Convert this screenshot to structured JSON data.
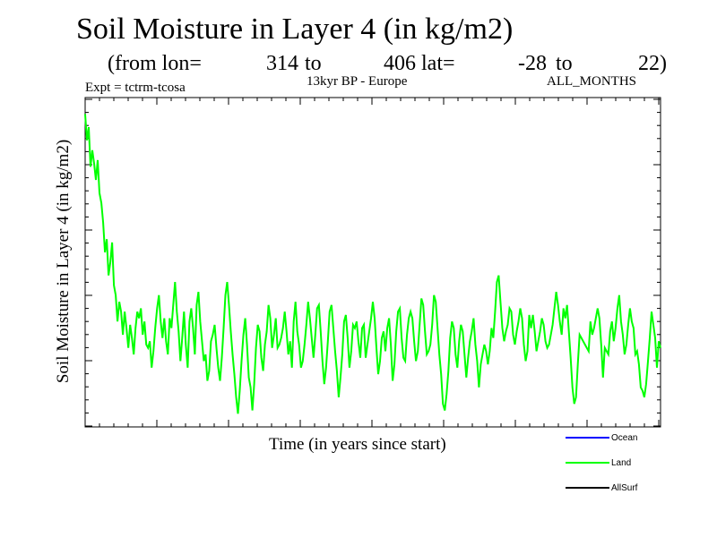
{
  "header": {
    "title": "Soil Moisture in Layer 4 (in kg/m2)",
    "from_lon_label": "(from lon=",
    "lon_start": "314",
    "to_label_1": "to",
    "lon_end": "406",
    "lat_label": "lat=",
    "lat_start": "-28",
    "to_label_2": "to",
    "lat_end": "22)",
    "expt": "Expt = tctrm-tcosa",
    "period": "13kyr BP - Europe",
    "months": "ALL_MONTHS"
  },
  "chart_data": {
    "type": "line",
    "title": "Soil Moisture in Layer 4 (in kg/m2)",
    "xlabel": "Time (in years since start)",
    "ylabel": "Soil Moisture in Layer 4 (in kg/m2)",
    "ylim": [
      0,
      100
    ],
    "x_tick_labels": [],
    "y_tick_labels": [],
    "legend_position": "bottom-right",
    "series": [
      {
        "name": "Ocean",
        "color": "#0000ff",
        "values": []
      },
      {
        "name": "Land",
        "color": "#00ff00",
        "values": [
          95,
          87,
          91,
          79,
          84,
          80,
          75,
          81,
          71,
          68,
          62,
          53,
          57,
          46,
          50,
          56,
          43,
          40,
          32,
          38,
          35,
          28,
          35,
          30,
          24,
          31,
          27,
          22,
          30,
          35,
          33,
          36,
          28,
          32,
          25,
          24,
          26,
          18,
          23,
          30,
          36,
          40,
          32,
          27,
          33,
          26,
          22,
          33,
          30,
          37,
          44,
          35,
          29,
          20,
          27,
          35,
          25,
          18,
          32,
          36,
          30,
          22,
          37,
          41,
          32,
          26,
          20,
          22,
          14,
          17,
          26,
          28,
          31,
          24,
          18,
          14,
          21,
          30,
          40,
          44,
          37,
          29,
          22,
          16,
          9,
          4,
          11,
          20,
          28,
          33,
          25,
          15,
          12,
          5,
          13,
          24,
          31,
          29,
          21,
          17,
          25,
          29,
          37,
          33,
          24,
          28,
          33,
          24,
          25,
          27,
          30,
          35,
          29,
          22,
          26,
          18,
          32,
          38,
          29,
          25,
          18,
          20,
          25,
          31,
          38,
          33,
          27,
          21,
          28,
          36,
          37,
          29,
          20,
          13,
          18,
          26,
          35,
          37,
          30,
          23,
          17,
          9,
          15,
          22,
          32,
          34,
          27,
          18,
          23,
          31,
          30,
          32,
          26,
          21,
          30,
          31,
          21,
          25,
          29,
          33,
          38,
          33,
          24,
          16,
          20,
          27,
          29,
          23,
          30,
          33,
          25,
          14,
          19,
          29,
          35,
          36,
          27,
          21,
          20,
          28,
          33,
          35,
          33,
          26,
          20,
          23,
          31,
          39,
          37,
          29,
          22,
          23,
          25,
          31,
          40,
          38,
          30,
          22,
          16,
          7,
          5,
          10,
          17,
          27,
          32,
          30,
          22,
          18,
          26,
          31,
          29,
          22,
          15,
          21,
          26,
          29,
          33,
          25,
          20,
          12,
          19,
          22,
          25,
          23,
          19,
          23,
          30,
          27,
          35,
          44,
          46,
          38,
          30,
          26,
          29,
          31,
          36,
          35,
          28,
          25,
          29,
          32,
          36,
          33,
          25,
          20,
          23,
          34,
          30,
          34,
          29,
          23,
          26,
          29,
          33,
          31,
          26,
          24,
          25,
          28,
          31,
          36,
          41,
          37,
          32,
          28,
          36,
          33,
          37,
          29,
          21,
          12,
          7,
          9,
          19,
          28,
          27,
          26,
          25,
          24,
          23,
          32,
          28,
          30,
          33,
          36,
          33,
          25,
          15,
          24,
          23,
          22,
          29,
          32,
          26,
          30,
          36,
          40,
          32,
          28,
          22,
          25,
          31,
          36,
          32,
          30,
          22,
          23,
          19,
          12,
          11,
          9,
          13,
          20,
          27,
          35,
          31,
          27,
          18,
          26,
          24
        ]
      },
      {
        "name": "AllSurf",
        "color": "#000000",
        "values": []
      }
    ]
  }
}
